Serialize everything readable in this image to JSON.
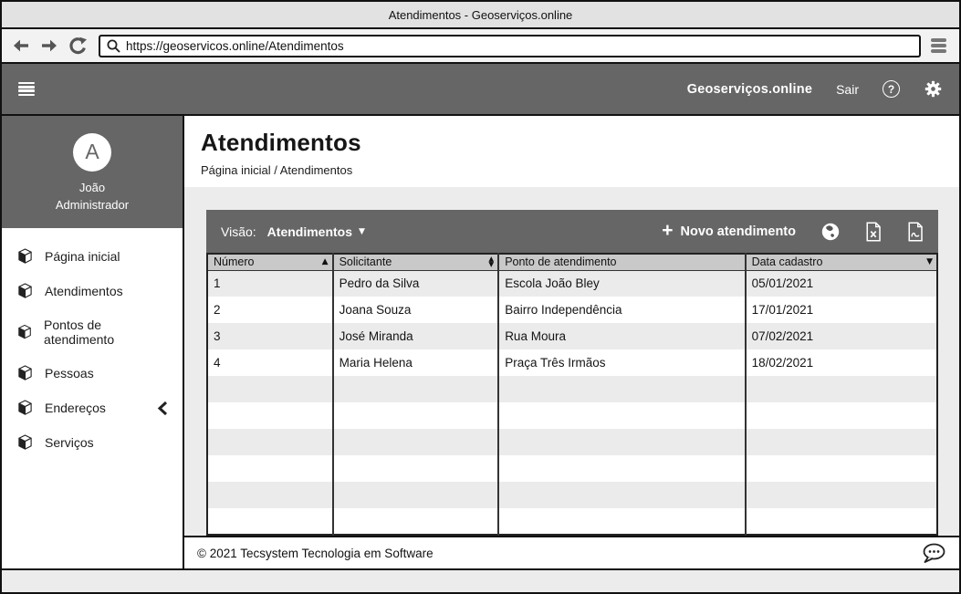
{
  "window": {
    "title": "Atendimentos - Geoserviços.online"
  },
  "browser": {
    "url": "https://geoservicos.online/Atendimentos"
  },
  "header": {
    "brand": "Geoserviços.online",
    "logout": "Sair"
  },
  "icons": {
    "question": "?",
    "plus": "+",
    "caret_down": "▼"
  },
  "sidebar": {
    "user": {
      "avatar_letter": "A",
      "name": "João",
      "role": "Administrador"
    },
    "items": [
      {
        "label": "Página inicial"
      },
      {
        "label": "Atendimentos"
      },
      {
        "label": "Pontos de atendimento"
      },
      {
        "label": "Pessoas"
      },
      {
        "label": "Endereços",
        "collapsed": true
      },
      {
        "label": "Serviços"
      }
    ]
  },
  "page": {
    "title": "Atendimentos",
    "breadcrumb": "Página inicial / Atendimentos"
  },
  "card_toolbar": {
    "view_label": "Visão:",
    "view_value": "Atendimentos",
    "new_label": "Novo atendimento"
  },
  "table": {
    "columns": [
      {
        "label": "Número",
        "sort": "asc"
      },
      {
        "label": "Solicitante",
        "sort": "both"
      },
      {
        "label": "Ponto de atendimento",
        "sort": "none"
      },
      {
        "label": "Data cadastro",
        "sort": "desc"
      }
    ],
    "rows": [
      [
        "1",
        "Pedro da Silva",
        "Escola João Bley",
        "05/01/2021"
      ],
      [
        "2",
        "Joana Souza",
        "Bairro Independência",
        "17/01/2021"
      ],
      [
        "3",
        "José Miranda",
        "Rua Moura",
        "07/02/2021"
      ],
      [
        "4",
        "Maria Helena",
        "Praça Três Irmãos",
        "18/02/2021"
      ],
      [
        "",
        "",
        "",
        ""
      ],
      [
        "",
        "",
        "",
        ""
      ],
      [
        "",
        "",
        "",
        ""
      ],
      [
        "",
        "",
        "",
        ""
      ],
      [
        "",
        "",
        "",
        ""
      ],
      [
        "",
        "",
        "",
        ""
      ]
    ]
  },
  "footer": {
    "copyright": "© 2021 Tecsystem Tecnologia em Software"
  }
}
